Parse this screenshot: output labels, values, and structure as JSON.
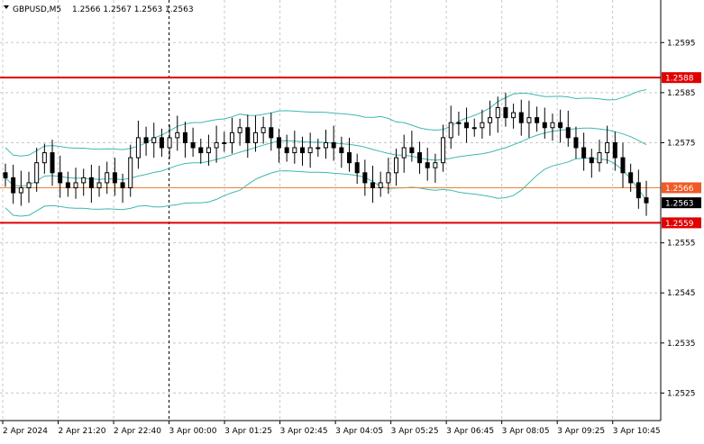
{
  "header": {
    "symbol": "GBPUSD,M5",
    "ohlc": "1.2566 1.2567 1.2563 1.2563"
  },
  "colors": {
    "background": "#ffffff",
    "grid": "#c8c8c8",
    "candle": "#000000",
    "bollinger": "#3fb8b0",
    "resistance": "#e00000",
    "current_line": "#f08030",
    "current_tag": "#f05a28",
    "last_tag": "#000000"
  },
  "chart_data": {
    "type": "candlestick",
    "symbol": "GBPUSD",
    "timeframe": "M5",
    "ylim": [
      1.25195,
      1.26035
    ],
    "y_ticks": [
      "1.2595",
      "1.2585",
      "1.2575",
      "1.2555",
      "1.2545",
      "1.2535",
      "1.2525"
    ],
    "x_ticks": [
      "2 Apr 2024",
      "2 Apr 21:20",
      "2 Apr 22:40",
      "3 Apr 00:00",
      "3 Apr 01:25",
      "3 Apr 02:45",
      "3 Apr 04:05",
      "3 Apr 05:25",
      "3 Apr 06:45",
      "3 Apr 08:05",
      "3 Apr 09:25",
      "3 Apr 10:45"
    ],
    "separator_at": "3 Apr 00:00",
    "levels": [
      {
        "label": "1.2588",
        "value": 1.2588,
        "kind": "horizontal-line"
      },
      {
        "label": "1.2559",
        "value": 1.2559,
        "kind": "horizontal-line"
      }
    ],
    "price_tags": [
      {
        "label": "1.2566",
        "value": 1.2566,
        "kind": "current"
      },
      {
        "label": "1.2563",
        "value": 1.2563,
        "kind": "last"
      }
    ],
    "close": [
      1.2568,
      1.2565,
      1.2566,
      1.2567,
      1.2571,
      1.2573,
      1.2569,
      1.2567,
      1.2566,
      1.2567,
      1.2568,
      1.2566,
      1.2567,
      1.2569,
      1.2567,
      1.2566,
      1.2572,
      1.2576,
      1.2575,
      1.2576,
      1.2574,
      1.2576,
      1.2577,
      1.2575,
      1.2574,
      1.2573,
      1.2574,
      1.2575,
      1.2575,
      1.2577,
      1.2578,
      1.2575,
      1.2577,
      1.2578,
      1.2576,
      1.2574,
      1.2573,
      1.2574,
      1.2573,
      1.2574,
      1.2574,
      1.2575,
      1.2574,
      1.2573,
      1.2571,
      1.2569,
      1.2567,
      1.2566,
      1.2567,
      1.2569,
      1.2572,
      1.2574,
      1.2573,
      1.2571,
      1.257,
      1.2571,
      1.2576,
      1.2579,
      1.2579,
      1.2578,
      1.2578,
      1.2579,
      1.258,
      1.2582,
      1.258,
      1.2581,
      1.2579,
      1.258,
      1.2579,
      1.2578,
      1.2579,
      1.2578,
      1.2576,
      1.2574,
      1.2572,
      1.2571,
      1.2573,
      1.2575,
      1.2572,
      1.2569,
      1.2567,
      1.2564,
      1.2563
    ]
  }
}
